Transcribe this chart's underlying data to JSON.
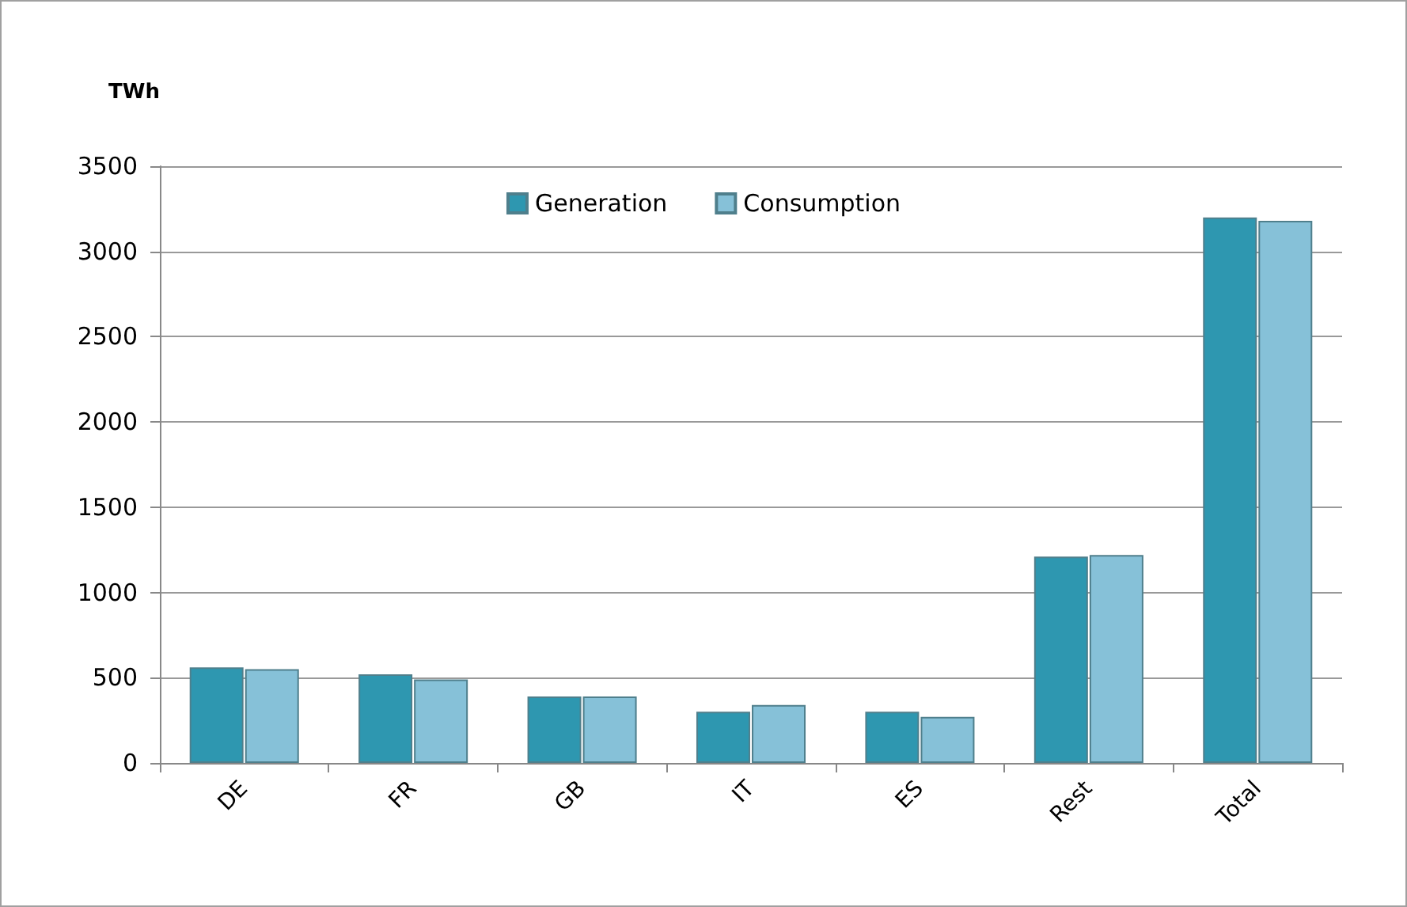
{
  "chart_data": {
    "type": "bar",
    "ylabel": "TWh",
    "categories": [
      "DE",
      "FR",
      "GB",
      "IT",
      "ES",
      "Rest",
      "Total"
    ],
    "series": [
      {
        "name": "Generation",
        "color": "#2e97b0",
        "values": [
          560,
          520,
          390,
          300,
          300,
          1210,
          3200
        ]
      },
      {
        "name": "Consumption",
        "color": "#86c1d8",
        "values": [
          550,
          490,
          390,
          340,
          270,
          1220,
          3180
        ]
      }
    ],
    "ylim": [
      0,
      3500
    ],
    "yticks": [
      0,
      500,
      1000,
      1500,
      2000,
      2500,
      3000,
      3500
    ],
    "grid": "y",
    "legend": "top"
  }
}
